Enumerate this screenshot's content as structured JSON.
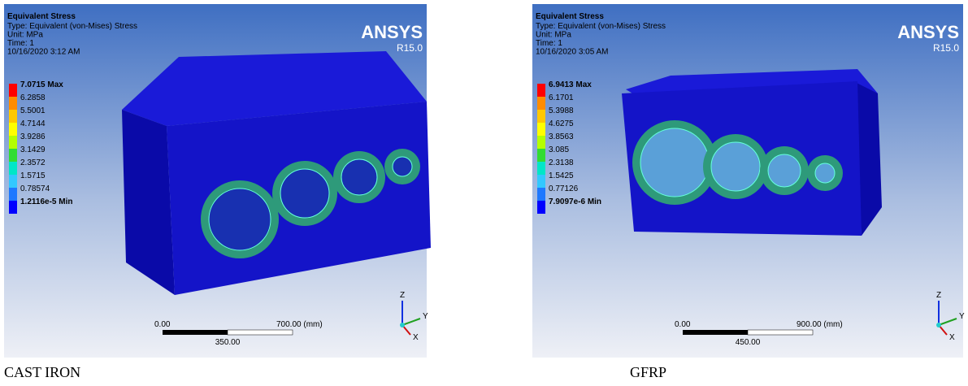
{
  "panels": [
    {
      "title": "Equivalent Stress",
      "lines": [
        "Type: Equivalent (von-Mises) Stress",
        "Unit: MPa",
        "Time: 1",
        "10/16/2020 3:12 AM"
      ],
      "logo": "ANSYS",
      "version": "R15.0",
      "legend": [
        "7.0715 Max",
        "6.2858",
        "5.5001",
        "4.7144",
        "3.9286",
        "3.1429",
        "2.3572",
        "1.5715",
        "0.78574",
        "1.2116e-5 Min"
      ],
      "scale": {
        "start": "0.00",
        "end": "700.00 (mm)",
        "mid": "350.00"
      },
      "axes": [
        "Z",
        "Y",
        "X"
      ],
      "caption": "CAST IRON"
    },
    {
      "title": "Equivalent Stress",
      "lines": [
        "Type: Equivalent (von-Mises) Stress",
        "Unit: MPa",
        "Time: 1",
        "10/16/2020 3:05 AM"
      ],
      "logo": "ANSYS",
      "version": "R15.0",
      "legend": [
        "6.9413 Max",
        "6.1701",
        "5.3988",
        "4.6275",
        "3.8563",
        "3.085",
        "2.3138",
        "1.5425",
        "0.77126",
        "7.9097e-6 Min"
      ],
      "scale": {
        "start": "0.00",
        "end": "900.00 (mm)",
        "mid": "450.00"
      },
      "axes": [
        "Z",
        "Y",
        "X"
      ],
      "caption": "GFRP"
    }
  ]
}
